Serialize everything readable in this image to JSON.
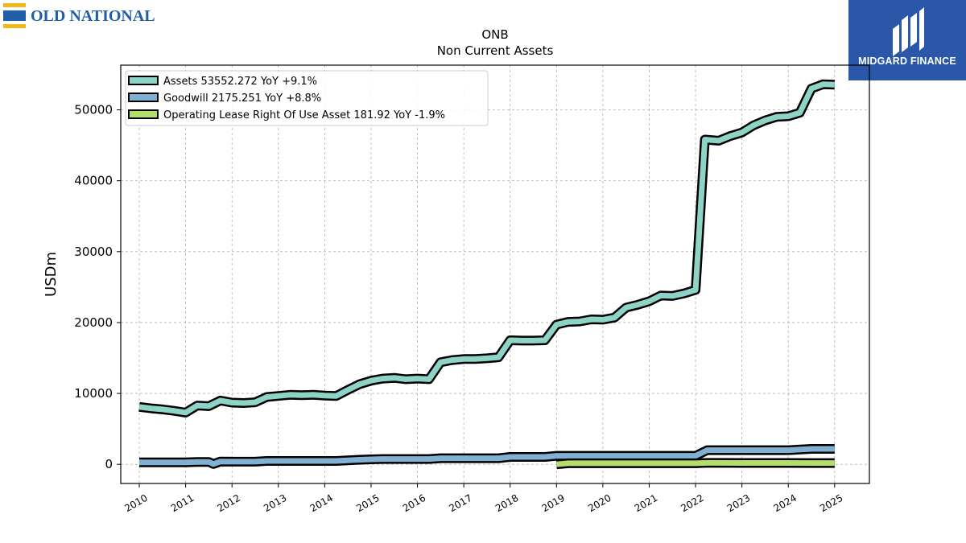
{
  "logos": {
    "left_text": "OLD NATIONAL",
    "right_text": "MIDGARD FINANCE"
  },
  "colors": {
    "assets": "#8dd3c7",
    "goodwill": "#80b1d3",
    "lease": "#b3de69",
    "old_national_blue": "#1f5fa8",
    "old_national_gold": "#f2b81b",
    "midgard_blue": "#2b57a8"
  },
  "chart_data": {
    "type": "line",
    "title": "ONB",
    "subtitle": "Non Current  Assets",
    "xlabel": "",
    "ylabel": "USDm",
    "xlim": [
      2009.6,
      2025.75
    ],
    "ylim": [
      -2700,
      56300
    ],
    "xticks": [
      "2010",
      "2011",
      "2012",
      "2013",
      "2014",
      "2015",
      "2016",
      "2017",
      "2018",
      "2019",
      "2020",
      "2021",
      "2022",
      "2023",
      "2024",
      "2025"
    ],
    "yticks": [
      "0",
      "10000",
      "20000",
      "30000",
      "40000",
      "50000"
    ],
    "grid": true,
    "legend_position": "upper-left",
    "series": [
      {
        "name": "Assets  53552.272 YoY +9.1%",
        "color_key": "assets",
        "points": [
          [
            2010.0,
            8100
          ],
          [
            2010.25,
            7900
          ],
          [
            2010.5,
            7750
          ],
          [
            2010.75,
            7550
          ],
          [
            2011.0,
            7300
          ],
          [
            2011.25,
            8300
          ],
          [
            2011.5,
            8200
          ],
          [
            2011.75,
            9000
          ],
          [
            2012.0,
            8700
          ],
          [
            2012.25,
            8650
          ],
          [
            2012.5,
            8750
          ],
          [
            2012.75,
            9500
          ],
          [
            2013.0,
            9650
          ],
          [
            2013.25,
            9800
          ],
          [
            2013.5,
            9750
          ],
          [
            2013.75,
            9800
          ],
          [
            2014.0,
            9700
          ],
          [
            2014.25,
            9650
          ],
          [
            2014.5,
            10500
          ],
          [
            2014.75,
            11300
          ],
          [
            2015.0,
            11800
          ],
          [
            2015.25,
            12100
          ],
          [
            2015.5,
            12200
          ],
          [
            2015.75,
            12000
          ],
          [
            2016.0,
            12100
          ],
          [
            2016.25,
            12000
          ],
          [
            2016.5,
            14400
          ],
          [
            2016.75,
            14700
          ],
          [
            2017.0,
            14850
          ],
          [
            2017.25,
            14850
          ],
          [
            2017.5,
            14950
          ],
          [
            2017.75,
            15100
          ],
          [
            2018.0,
            17500
          ],
          [
            2018.25,
            17450
          ],
          [
            2018.5,
            17450
          ],
          [
            2018.75,
            17500
          ],
          [
            2019.0,
            19700
          ],
          [
            2019.25,
            20100
          ],
          [
            2019.5,
            20150
          ],
          [
            2019.75,
            20450
          ],
          [
            2020.0,
            20400
          ],
          [
            2020.25,
            20700
          ],
          [
            2020.5,
            22100
          ],
          [
            2020.75,
            22500
          ],
          [
            2021.0,
            23000
          ],
          [
            2021.25,
            23800
          ],
          [
            2021.5,
            23750
          ],
          [
            2021.75,
            24100
          ],
          [
            2022.0,
            24600
          ],
          [
            2022.2,
            45800
          ],
          [
            2022.5,
            45650
          ],
          [
            2022.75,
            46300
          ],
          [
            2023.0,
            46800
          ],
          [
            2023.25,
            47800
          ],
          [
            2023.5,
            48500
          ],
          [
            2023.75,
            49000
          ],
          [
            2024.0,
            49100
          ],
          [
            2024.25,
            49600
          ],
          [
            2024.5,
            53000
          ],
          [
            2024.75,
            53600
          ],
          [
            2025.0,
            53552
          ]
        ]
      },
      {
        "name": "Goodwill  2175.251 YoY +8.8%",
        "color_key": "goodwill",
        "points": [
          [
            2010.0,
            280
          ],
          [
            2010.5,
            280
          ],
          [
            2011.0,
            280
          ],
          [
            2011.25,
            340
          ],
          [
            2011.5,
            340
          ],
          [
            2011.6,
            50
          ],
          [
            2011.75,
            400
          ],
          [
            2012.0,
            380
          ],
          [
            2012.5,
            380
          ],
          [
            2012.75,
            480
          ],
          [
            2013.0,
            480
          ],
          [
            2013.5,
            480
          ],
          [
            2014.0,
            480
          ],
          [
            2014.25,
            480
          ],
          [
            2014.75,
            650
          ],
          [
            2015.0,
            700
          ],
          [
            2015.25,
            750
          ],
          [
            2016.0,
            750
          ],
          [
            2016.25,
            750
          ],
          [
            2016.5,
            860
          ],
          [
            2017.0,
            860
          ],
          [
            2017.75,
            860
          ],
          [
            2018.0,
            1040
          ],
          [
            2018.75,
            1040
          ],
          [
            2019.0,
            1200
          ],
          [
            2020.0,
            1200
          ],
          [
            2021.0,
            1200
          ],
          [
            2022.0,
            1200
          ],
          [
            2022.25,
            1998
          ],
          [
            2023.0,
            2000
          ],
          [
            2024.0,
            2000
          ],
          [
            2024.5,
            2175
          ],
          [
            2025.0,
            2175
          ]
        ]
      },
      {
        "name": "Operating Lease Right Of Use Asset  181.92 YoY -1.9%",
        "color_key": "lease",
        "points": [
          [
            2019.0,
            0
          ],
          [
            2019.25,
            150
          ],
          [
            2020.0,
            150
          ],
          [
            2021.0,
            150
          ],
          [
            2022.0,
            150
          ],
          [
            2022.25,
            200
          ],
          [
            2023.0,
            195
          ],
          [
            2024.0,
            190
          ],
          [
            2024.5,
            185
          ],
          [
            2025.0,
            182
          ]
        ]
      }
    ]
  }
}
